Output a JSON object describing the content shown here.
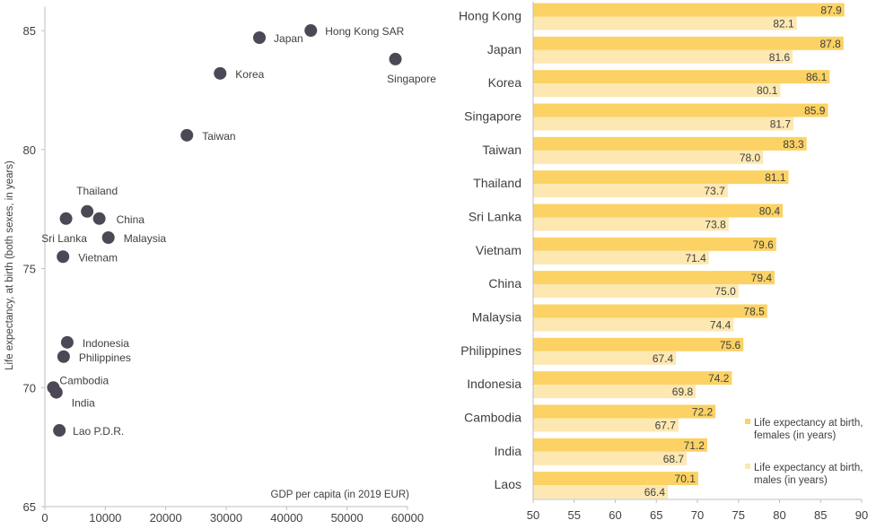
{
  "colors": {
    "point": "#4d4856",
    "axis": "#bfbfbf",
    "text": "#404040",
    "female_bar": "#fbd263",
    "male_bar": "#fde8b2"
  },
  "chart_data": [
    {
      "type": "scatter",
      "xlabel": "GDP per capita (in 2019 EUR)",
      "ylabel": "Life expectancy, at birth (both sexes, in years)",
      "xlim": [
        0,
        60000
      ],
      "ylim": [
        65,
        86
      ],
      "xticks": [
        0,
        10000,
        20000,
        30000,
        40000,
        50000,
        60000
      ],
      "xtick_labels": [
        "0",
        "10000",
        "20000",
        "30000",
        "40000",
        "50000",
        "60000"
      ],
      "yticks": [
        65,
        70,
        75,
        80,
        85
      ],
      "ytick_labels": [
        "65",
        "70",
        "75",
        "80",
        "85"
      ],
      "grid": false,
      "points": [
        {
          "label": "Hong Kong SAR",
          "x": 44000,
          "y": 85.0
        },
        {
          "label": "Japan",
          "x": 35500,
          "y": 84.7
        },
        {
          "label": "Singapore",
          "x": 58000,
          "y": 83.8
        },
        {
          "label": "Korea",
          "x": 29000,
          "y": 83.2
        },
        {
          "label": "Taiwan",
          "x": 23500,
          "y": 80.6
        },
        {
          "label": "Thailand",
          "x": 7000,
          "y": 77.4
        },
        {
          "label": "Sri Lanka",
          "x": 3500,
          "y": 77.1
        },
        {
          "label": "China",
          "x": 9000,
          "y": 77.1
        },
        {
          "label": "Malaysia",
          "x": 10500,
          "y": 76.3
        },
        {
          "label": "Vietnam",
          "x": 3000,
          "y": 75.5
        },
        {
          "label": "Indonesia",
          "x": 3700,
          "y": 71.9
        },
        {
          "label": "Philippines",
          "x": 3100,
          "y": 71.3
        },
        {
          "label": "Cambodia",
          "x": 1400,
          "y": 70.0
        },
        {
          "label": "India",
          "x": 1900,
          "y": 69.8
        },
        {
          "label": "Lao P.D.R.",
          "x": 2400,
          "y": 68.2
        }
      ]
    },
    {
      "type": "bar",
      "orientation": "horizontal",
      "categories": [
        "Hong Kong",
        "Japan",
        "Korea",
        "Singapore",
        "Taiwan",
        "Thailand",
        "Sri Lanka",
        "Vietnam",
        "China",
        "Malaysia",
        "Philippines",
        "Indonesia",
        "Cambodia",
        "India",
        "Laos"
      ],
      "series": [
        {
          "name": "Life expectancy at birth, females (in years)",
          "values": [
            87.9,
            87.8,
            86.1,
            85.9,
            83.3,
            81.1,
            80.4,
            79.6,
            79.4,
            78.5,
            75.6,
            74.2,
            72.2,
            71.2,
            70.1
          ]
        },
        {
          "name": "Life expectancy at birth, males (in years)",
          "values": [
            82.1,
            81.6,
            80.1,
            81.7,
            78.0,
            73.7,
            73.8,
            71.4,
            75.0,
            74.4,
            67.4,
            69.8,
            67.7,
            68.7,
            66.4
          ]
        }
      ],
      "value_labels": {
        "females": [
          "87.9",
          "87.8",
          "86.1",
          "85.9",
          "83.3",
          "81.1",
          "80.4",
          "79.6",
          "79.4",
          "78.5",
          "75.6",
          "74.2",
          "72.2",
          "71.2",
          "70.1"
        ],
        "males": [
          "82.1",
          "81.6",
          "80.1",
          "81.7",
          "78.0",
          "73.7",
          "73.8",
          "71.4",
          "75.0",
          "74.4",
          "67.4",
          "69.8",
          "67.7",
          "68.7",
          "66.4"
        ]
      },
      "xlim": [
        50,
        90
      ],
      "xticks": [
        50,
        55,
        60,
        65,
        70,
        75,
        80,
        85,
        90
      ],
      "xtick_labels": [
        "50",
        "55",
        "60",
        "65",
        "70",
        "75",
        "80",
        "85",
        "90"
      ],
      "legend": {
        "placement": "bottom-right",
        "female_lines": [
          "Life expectancy at birth,",
          "females (in years)"
        ],
        "male_lines": [
          "Life expectancy at birth,",
          "males (in years)"
        ]
      },
      "grid": false
    }
  ]
}
